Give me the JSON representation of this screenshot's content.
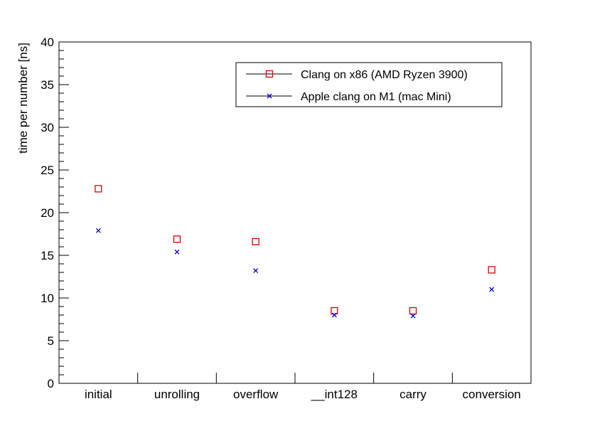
{
  "chart_data": {
    "type": "scatter",
    "categories": [
      "initial",
      "unrolling",
      "overflow",
      "__int128",
      "carry",
      "conversion"
    ],
    "series": [
      {
        "name": "Clang on x86 (AMD Ryzen 3900)",
        "marker": "open-square",
        "color": "#dd0000",
        "values": [
          22.8,
          16.9,
          16.6,
          8.5,
          8.5,
          13.3
        ]
      },
      {
        "name": "Apple clang on M1 (mac Mini)",
        "marker": "x",
        "color": "#0000cc",
        "values": [
          17.9,
          15.4,
          13.2,
          8.0,
          7.9,
          11.0
        ]
      }
    ],
    "title": "",
    "xlabel": "",
    "ylabel": "time per number [ns]",
    "ylim": [
      0,
      40
    ],
    "yticks": [
      0,
      5,
      10,
      15,
      20,
      25,
      30,
      35,
      40
    ],
    "grid": false,
    "legend_position": "top-right"
  }
}
